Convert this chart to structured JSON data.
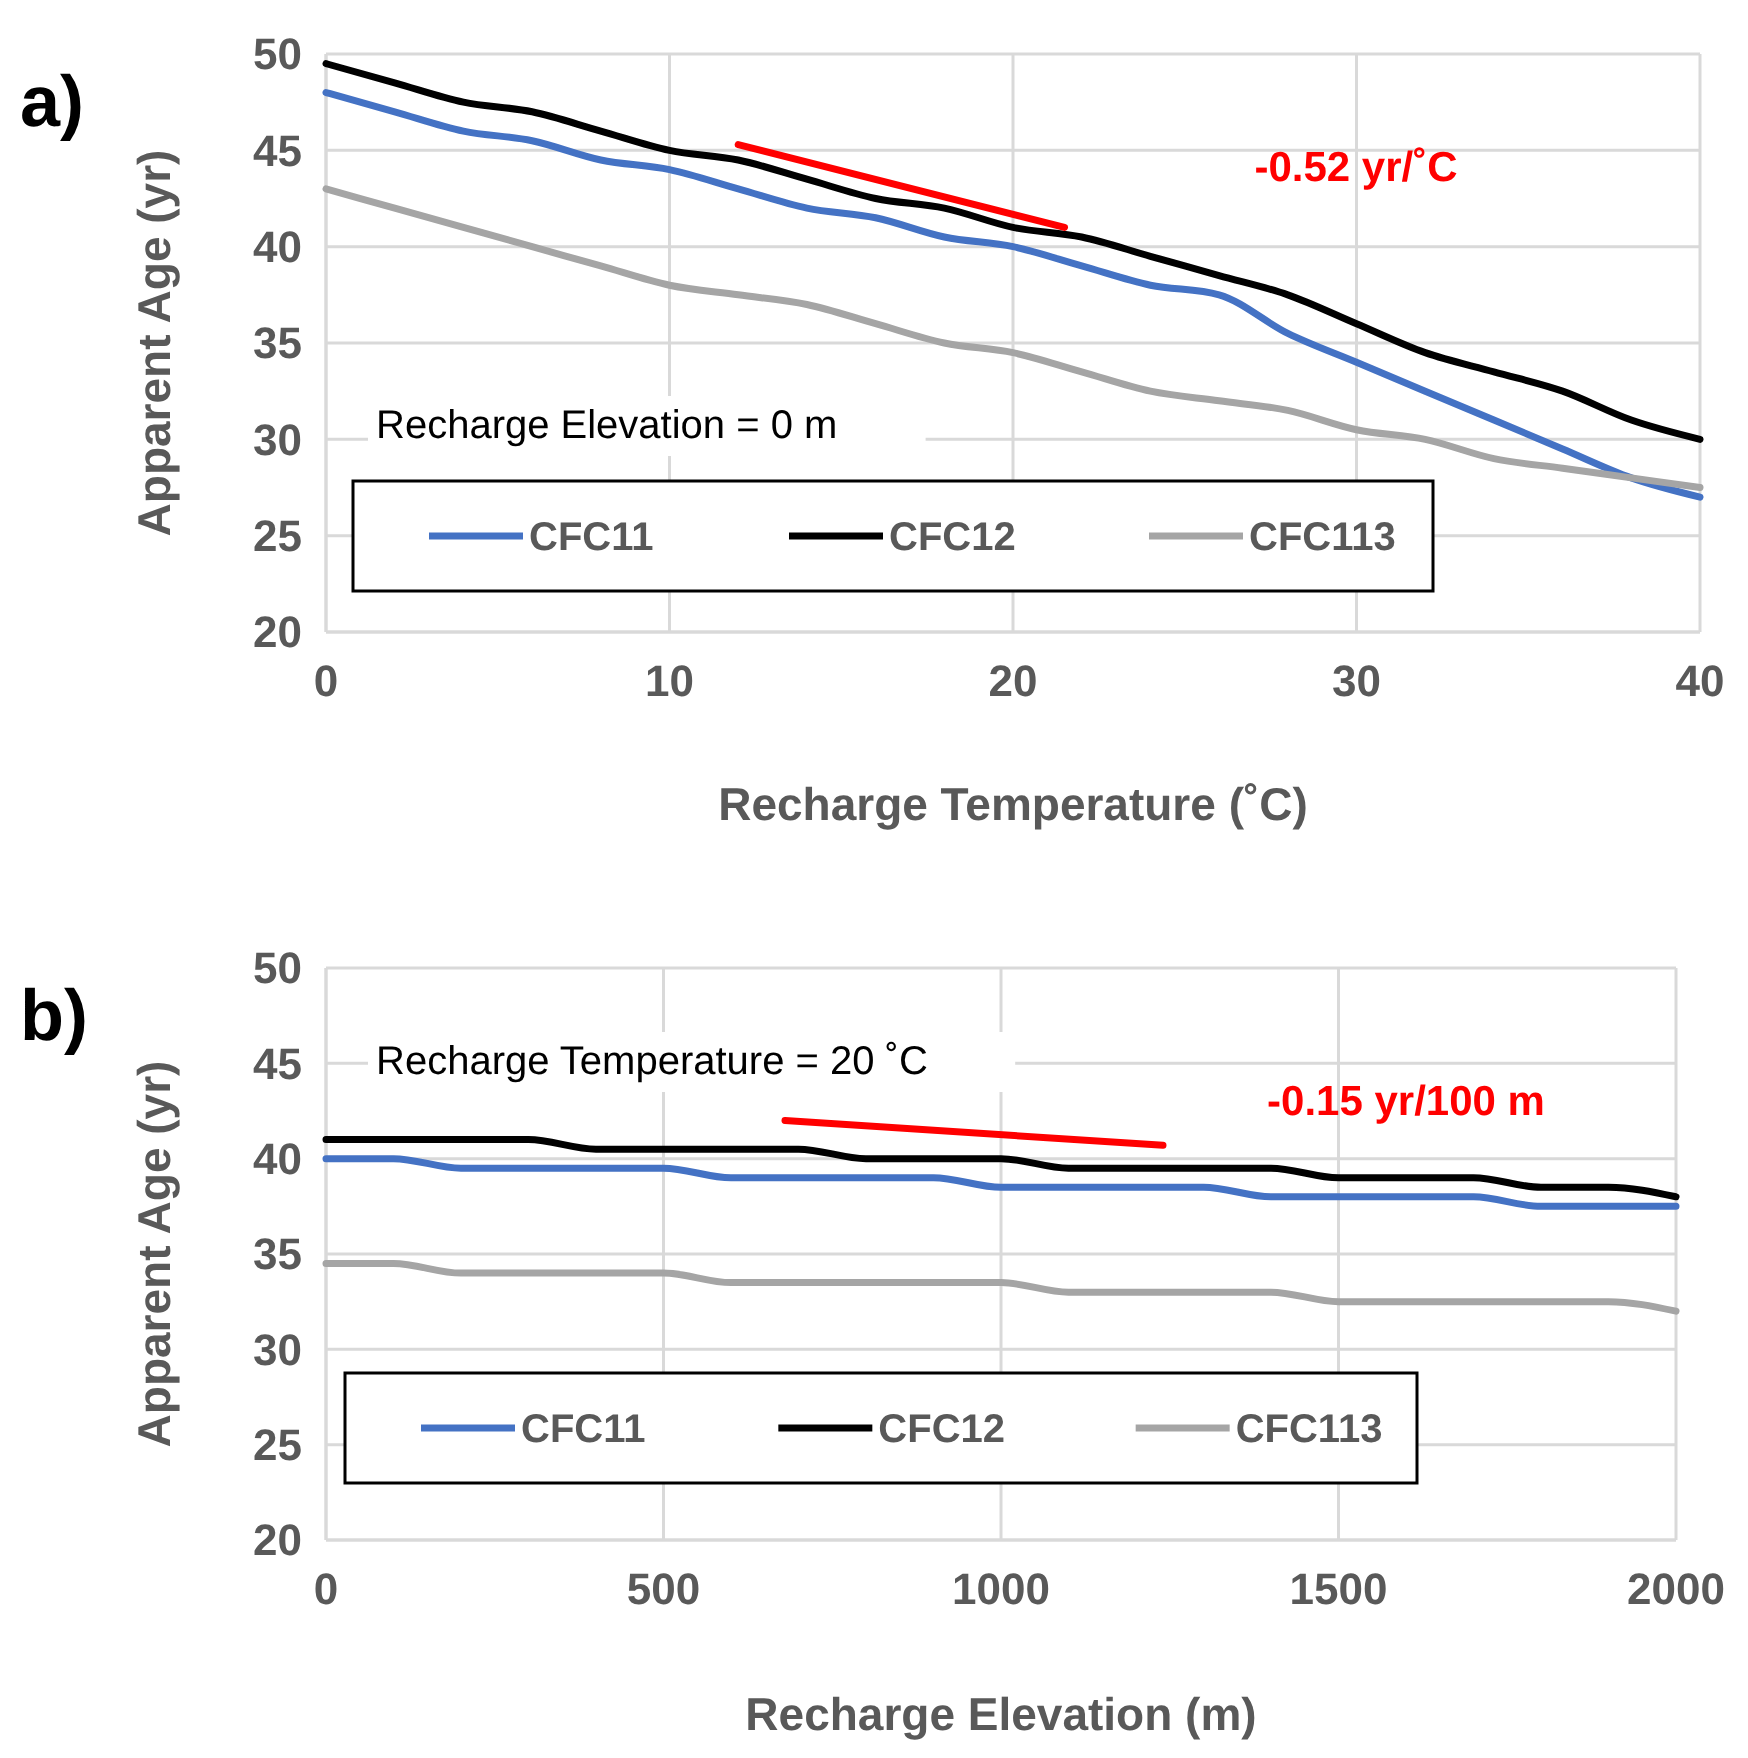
{
  "chart_data": [
    {
      "type": "line",
      "xlabel": "Recharge Temperature (˚C)",
      "ylabel": "Apparent Age (yr)",
      "xlim": [
        0,
        40
      ],
      "xticks": [
        0,
        10,
        20,
        30,
        40
      ],
      "ylim": [
        20,
        50
      ],
      "yticks": [
        20,
        25,
        30,
        35,
        40,
        45,
        50
      ],
      "grid": true,
      "legend": "bottom",
      "x": [
        0,
        2,
        4,
        6,
        8,
        10,
        12,
        14,
        16,
        18,
        20,
        22,
        24,
        26,
        28,
        30,
        32,
        34,
        36,
        38,
        40
      ],
      "series": [
        {
          "name": "CFC11",
          "color": "#4472c4",
          "values": [
            48,
            47,
            46,
            45.5,
            44.5,
            44,
            43,
            42,
            41.5,
            40.5,
            40,
            39,
            38,
            37.5,
            35.5,
            34,
            32.5,
            31,
            29.5,
            28,
            27
          ]
        },
        {
          "name": "CFC12",
          "color": "#000000",
          "values": [
            49.5,
            48.5,
            47.5,
            47,
            46,
            45,
            44.5,
            43.5,
            42.5,
            42,
            41,
            40.5,
            39.5,
            38.5,
            37.5,
            36,
            34.5,
            33.5,
            32.5,
            31,
            30
          ]
        },
        {
          "name": "CFC113",
          "color": "#a5a5a5",
          "values": [
            43,
            42,
            41,
            40,
            39,
            38,
            37.5,
            37,
            36,
            35,
            34.5,
            33.5,
            32.5,
            32,
            31.5,
            30.5,
            30,
            29,
            28.5,
            28,
            27.5
          ]
        },
        {
          "type": "line",
          "color": "#ff0000",
          "x": [
            12,
            21.5
          ],
          "values": [
            45.3,
            41
          ]
        }
      ],
      "annotations": [
        "a)",
        "Recharge Elevation = 0 m",
        "-0.52 yr/˚C"
      ]
    },
    {
      "type": "line",
      "xlabel": "Recharge Elevation (m)",
      "ylabel": "Apparent Age (yr)",
      "xlim": [
        0,
        2000
      ],
      "xticks": [
        0,
        500,
        1000,
        1500,
        2000
      ],
      "ylim": [
        20,
        50
      ],
      "yticks": [
        20,
        25,
        30,
        35,
        40,
        45,
        50
      ],
      "grid": true,
      "legend": "bottom",
      "x": [
        0,
        100,
        200,
        300,
        400,
        500,
        600,
        700,
        800,
        900,
        1000,
        1100,
        1200,
        1300,
        1400,
        1500,
        1600,
        1700,
        1800,
        1900,
        2000
      ],
      "series": [
        {
          "name": "CFC11",
          "color": "#4472c4",
          "values": [
            40,
            40,
            39.5,
            39.5,
            39.5,
            39.5,
            39,
            39,
            39,
            39,
            38.5,
            38.5,
            38.5,
            38.5,
            38,
            38,
            38,
            38,
            37.5,
            37.5,
            37.5
          ]
        },
        {
          "name": "CFC12",
          "color": "#000000",
          "values": [
            41,
            41,
            41,
            41,
            40.5,
            40.5,
            40.5,
            40.5,
            40,
            40,
            40,
            39.5,
            39.5,
            39.5,
            39.5,
            39,
            39,
            39,
            38.5,
            38.5,
            38
          ]
        },
        {
          "name": "CFC113",
          "color": "#a5a5a5",
          "values": [
            34.5,
            34.5,
            34,
            34,
            34,
            34,
            33.5,
            33.5,
            33.5,
            33.5,
            33.5,
            33,
            33,
            33,
            33,
            32.5,
            32.5,
            32.5,
            32.5,
            32.5,
            32
          ]
        },
        {
          "type": "line",
          "color": "#ff0000",
          "x": [
            680,
            1240
          ],
          "values": [
            42,
            40.7
          ]
        }
      ],
      "annotations": [
        "b)",
        "Recharge Temperature = 20 ˚C",
        "-0.15 yr/100 m"
      ]
    }
  ]
}
